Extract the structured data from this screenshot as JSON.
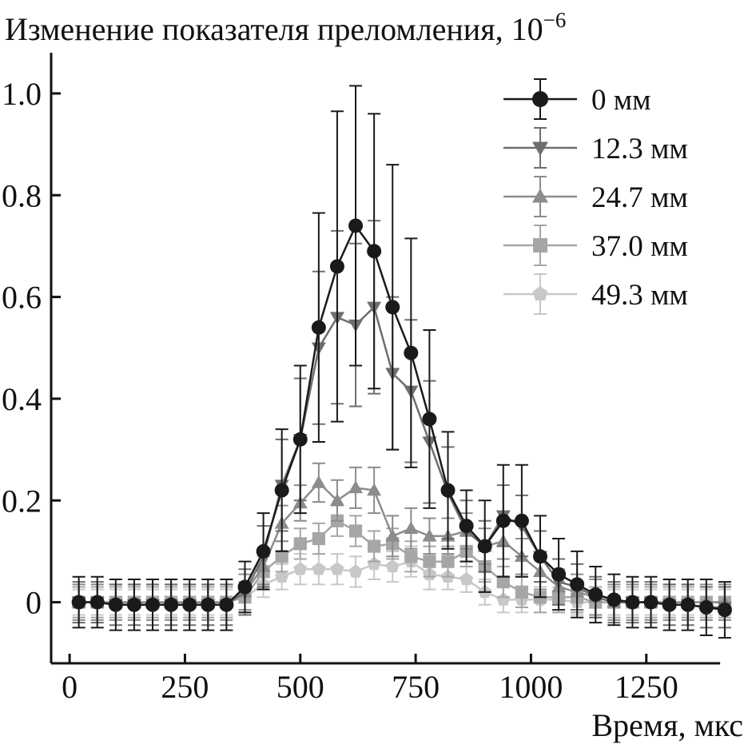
{
  "chart_data": {
    "type": "line",
    "title": "",
    "ylabel": "Изменение показателя преломления, 10",
    "ylabel_exponent": "−6",
    "xlabel": "Время, мкс",
    "xlim": [
      -40,
      1460
    ],
    "ylim": [
      -0.12,
      1.08
    ],
    "xticks": [
      0,
      250,
      500,
      750,
      1000,
      1250
    ],
    "xtick_labels": [
      "0",
      "250",
      "500",
      "750",
      "1000",
      "1250"
    ],
    "yticks": [
      0,
      0.2,
      0.4,
      0.6,
      0.8,
      1.0
    ],
    "ytick_labels": [
      "0",
      "0.2",
      "0.4",
      "0.6",
      "0.8",
      "1.0"
    ],
    "grid": false,
    "legend_position": "top-right",
    "x": [
      20,
      60,
      100,
      140,
      180,
      220,
      260,
      300,
      340,
      380,
      420,
      460,
      500,
      540,
      580,
      620,
      660,
      700,
      740,
      780,
      820,
      860,
      900,
      940,
      980,
      1020,
      1060,
      1100,
      1140,
      1180,
      1220,
      1260,
      1300,
      1340,
      1380,
      1420
    ],
    "series": [
      {
        "name": "0 мм",
        "marker": "circle",
        "color": "#1a1a1a",
        "values": [
          0.0,
          0.0,
          -0.005,
          -0.005,
          -0.005,
          -0.005,
          -0.005,
          -0.005,
          -0.005,
          0.03,
          0.1,
          0.22,
          0.32,
          0.54,
          0.66,
          0.74,
          0.69,
          0.58,
          0.49,
          0.36,
          0.22,
          0.15,
          0.11,
          0.16,
          0.16,
          0.09,
          0.055,
          0.035,
          0.015,
          0.005,
          0.0,
          0.0,
          -0.005,
          -0.005,
          -0.01,
          -0.015
        ],
        "errors": [
          0.05,
          0.05,
          0.05,
          0.05,
          0.05,
          0.05,
          0.05,
          0.05,
          0.05,
          0.05,
          0.075,
          0.12,
          0.145,
          0.225,
          0.305,
          0.275,
          0.27,
          0.28,
          0.225,
          0.175,
          0.115,
          0.07,
          0.09,
          0.11,
          0.11,
          0.08,
          0.07,
          0.065,
          0.055,
          0.05,
          0.05,
          0.05,
          0.05,
          0.05,
          0.055,
          0.055
        ]
      },
      {
        "name": "12.3 мм",
        "marker": "triangle-down",
        "color": "#6e6e6e",
        "values": [
          0.0,
          0.0,
          -0.005,
          -0.005,
          -0.005,
          -0.005,
          -0.005,
          -0.005,
          -0.005,
          0.02,
          0.09,
          0.23,
          0.32,
          0.5,
          0.56,
          0.545,
          0.58,
          0.45,
          0.415,
          0.315,
          0.215,
          0.14,
          0.11,
          0.17,
          0.15,
          0.09,
          0.04,
          0.03,
          0.01,
          0.0,
          0.0,
          0.0,
          -0.005,
          -0.005,
          -0.01,
          -0.01
        ],
        "errors": [
          0.04,
          0.04,
          0.04,
          0.04,
          0.04,
          0.04,
          0.04,
          0.04,
          0.04,
          0.045,
          0.06,
          0.09,
          0.12,
          0.15,
          0.17,
          0.16,
          0.17,
          0.15,
          0.14,
          0.12,
          0.09,
          0.06,
          0.05,
          0.06,
          0.06,
          0.05,
          0.045,
          0.045,
          0.04,
          0.04,
          0.04,
          0.04,
          0.04,
          0.04,
          0.04,
          0.04
        ]
      },
      {
        "name": "24.7 мм",
        "marker": "triangle-up",
        "color": "#8c8c8c",
        "values": [
          0.0,
          0.0,
          0.0,
          0.0,
          0.0,
          0.0,
          0.0,
          0.0,
          0.0,
          0.02,
          0.07,
          0.155,
          0.195,
          0.235,
          0.2,
          0.225,
          0.22,
          0.13,
          0.145,
          0.13,
          0.13,
          0.14,
          0.11,
          0.12,
          0.09,
          0.06,
          0.03,
          0.02,
          0.01,
          0.0,
          0.0,
          0.0,
          0.0,
          0.0,
          0.0,
          0.0
        ],
        "errors": [
          0.035,
          0.035,
          0.035,
          0.035,
          0.035,
          0.035,
          0.035,
          0.035,
          0.035,
          0.035,
          0.035,
          0.035,
          0.035,
          0.038,
          0.04,
          0.04,
          0.045,
          0.04,
          0.04,
          0.035,
          0.035,
          0.035,
          0.035,
          0.035,
          0.035,
          0.035,
          0.035,
          0.035,
          0.035,
          0.035,
          0.035,
          0.035,
          0.035,
          0.035,
          0.035,
          0.035
        ]
      },
      {
        "name": "37.0 мм",
        "marker": "square",
        "color": "#a6a6a6",
        "values": [
          0.0,
          0.0,
          0.0,
          0.0,
          0.0,
          0.0,
          0.0,
          0.0,
          0.0,
          0.01,
          0.06,
          0.09,
          0.115,
          0.125,
          0.16,
          0.14,
          0.11,
          0.115,
          0.09,
          0.08,
          0.08,
          0.1,
          0.07,
          0.04,
          0.02,
          0.01,
          0.01,
          0.01,
          0.0,
          0.0,
          0.0,
          0.0,
          0.0,
          0.0,
          0.0,
          0.0
        ],
        "errors": [
          0.03,
          0.03,
          0.03,
          0.03,
          0.03,
          0.03,
          0.03,
          0.03,
          0.03,
          0.03,
          0.03,
          0.03,
          0.03,
          0.03,
          0.03,
          0.03,
          0.03,
          0.03,
          0.03,
          0.03,
          0.03,
          0.03,
          0.03,
          0.03,
          0.03,
          0.03,
          0.03,
          0.03,
          0.03,
          0.03,
          0.03,
          0.03,
          0.03,
          0.03,
          0.03,
          0.03
        ]
      },
      {
        "name": "49.3 мм",
        "marker": "pentagon",
        "color": "#c8c8c8",
        "values": [
          0.0,
          0.0,
          0.0,
          0.0,
          0.0,
          0.0,
          0.0,
          0.0,
          0.0,
          0.01,
          0.035,
          0.05,
          0.065,
          0.065,
          0.065,
          0.06,
          0.075,
          0.07,
          0.08,
          0.055,
          0.05,
          0.045,
          0.02,
          0.005,
          0.005,
          0.005,
          0.005,
          0.0,
          0.0,
          0.0,
          0.0,
          0.0,
          0.0,
          0.0,
          0.0,
          0.0
        ],
        "errors": [
          0.025,
          0.025,
          0.025,
          0.025,
          0.025,
          0.025,
          0.025,
          0.025,
          0.025,
          0.025,
          0.025,
          0.025,
          0.03,
          0.03,
          0.03,
          0.03,
          0.03,
          0.03,
          0.03,
          0.03,
          0.025,
          0.025,
          0.025,
          0.025,
          0.025,
          0.025,
          0.025,
          0.025,
          0.025,
          0.025,
          0.025,
          0.025,
          0.025,
          0.025,
          0.025,
          0.025
        ]
      }
    ]
  }
}
